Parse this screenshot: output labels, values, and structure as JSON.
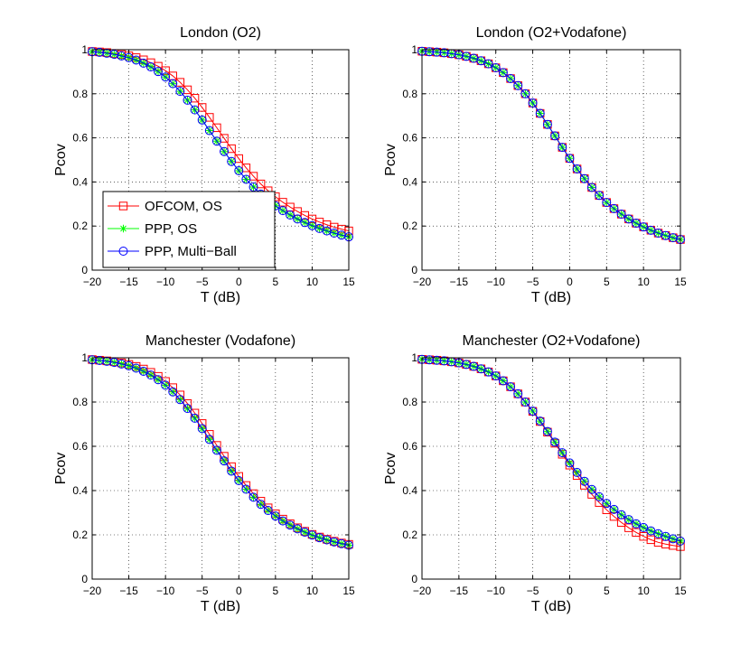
{
  "figure": {
    "background": "#ffffff"
  },
  "series_styles": [
    {
      "name": "OFCOM, OS",
      "color": "#ff0000",
      "marker": "square"
    },
    {
      "name": "PPP, OS",
      "color": "#00ff00",
      "marker": "star"
    },
    {
      "name": "PPP, Multi−Ball",
      "color": "#0000ff",
      "marker": "circle"
    }
  ],
  "chart_data": [
    {
      "type": "line",
      "title": "London (O2)",
      "xlabel": "T (dB)",
      "ylabel": "Pcov",
      "xlim": [
        -20,
        15
      ],
      "ylim": [
        0,
        1
      ],
      "xticks": [
        -20,
        -15,
        -10,
        -5,
        0,
        5,
        10,
        15
      ],
      "yticks": [
        0,
        0.2,
        0.4,
        0.6,
        0.8,
        1
      ],
      "grid": true,
      "legend": {
        "location": "lower-left",
        "entries": [
          "OFCOM, OS",
          "PPP, OS",
          "PPP, Multi−Ball"
        ]
      },
      "x": [
        -20,
        -19,
        -18,
        -17,
        -16,
        -15,
        -14,
        -13,
        -12,
        -11,
        -10,
        -9,
        -8,
        -7,
        -6,
        -5,
        -4,
        -3,
        -2,
        -1,
        0,
        1,
        2,
        3,
        4,
        5,
        6,
        7,
        8,
        9,
        10,
        11,
        12,
        13,
        14,
        15
      ],
      "series": [
        {
          "name": "OFCOM, OS",
          "values": [
            0.992,
            0.99,
            0.987,
            0.983,
            0.978,
            0.972,
            0.964,
            0.954,
            0.941,
            0.925,
            0.905,
            0.881,
            0.852,
            0.818,
            0.78,
            0.738,
            0.693,
            0.646,
            0.598,
            0.551,
            0.506,
            0.464,
            0.426,
            0.391,
            0.36,
            0.333,
            0.308,
            0.286,
            0.266,
            0.248,
            0.232,
            0.218,
            0.206,
            0.195,
            0.186,
            0.178
          ]
        },
        {
          "name": "PPP, OS",
          "values": [
            0.991,
            0.988,
            0.984,
            0.979,
            0.972,
            0.964,
            0.953,
            0.939,
            0.922,
            0.901,
            0.876,
            0.846,
            0.811,
            0.771,
            0.727,
            0.681,
            0.633,
            0.585,
            0.538,
            0.493,
            0.451,
            0.412,
            0.377,
            0.345,
            0.317,
            0.292,
            0.27,
            0.25,
            0.232,
            0.216,
            0.202,
            0.189,
            0.178,
            0.168,
            0.159,
            0.151
          ]
        },
        {
          "name": "PPP, Multi−Ball",
          "values": [
            0.991,
            0.988,
            0.984,
            0.979,
            0.972,
            0.964,
            0.953,
            0.939,
            0.922,
            0.901,
            0.876,
            0.846,
            0.811,
            0.771,
            0.727,
            0.681,
            0.633,
            0.585,
            0.538,
            0.493,
            0.451,
            0.412,
            0.377,
            0.345,
            0.317,
            0.292,
            0.27,
            0.25,
            0.232,
            0.216,
            0.202,
            0.189,
            0.178,
            0.168,
            0.159,
            0.151
          ]
        }
      ]
    },
    {
      "type": "line",
      "title": "London (O2+Vodafone)",
      "xlabel": "T (dB)",
      "ylabel": "Pcov",
      "xlim": [
        -20,
        15
      ],
      "ylim": [
        0,
        1
      ],
      "xticks": [
        -20,
        -15,
        -10,
        -5,
        0,
        5,
        10,
        15
      ],
      "yticks": [
        0,
        0.2,
        0.4,
        0.6,
        0.8,
        1
      ],
      "grid": true,
      "x": [
        -20,
        -19,
        -18,
        -17,
        -16,
        -15,
        -14,
        -13,
        -12,
        -11,
        -10,
        -9,
        -8,
        -7,
        -6,
        -5,
        -4,
        -3,
        -2,
        -1,
        0,
        1,
        2,
        3,
        4,
        5,
        6,
        7,
        8,
        9,
        10,
        11,
        12,
        13,
        14,
        15
      ],
      "series": [
        {
          "name": "OFCOM, OS",
          "values": [
            0.993,
            0.991,
            0.989,
            0.986,
            0.982,
            0.977,
            0.97,
            0.961,
            0.95,
            0.936,
            0.918,
            0.896,
            0.869,
            0.837,
            0.8,
            0.758,
            0.711,
            0.661,
            0.609,
            0.557,
            0.507,
            0.459,
            0.415,
            0.375,
            0.339,
            0.307,
            0.279,
            0.254,
            0.232,
            0.213,
            0.196,
            0.181,
            0.168,
            0.157,
            0.147,
            0.139
          ]
        },
        {
          "name": "PPP, OS",
          "values": [
            0.993,
            0.991,
            0.989,
            0.986,
            0.982,
            0.977,
            0.97,
            0.961,
            0.95,
            0.936,
            0.918,
            0.896,
            0.869,
            0.837,
            0.8,
            0.758,
            0.711,
            0.661,
            0.609,
            0.557,
            0.507,
            0.459,
            0.415,
            0.375,
            0.339,
            0.307,
            0.279,
            0.254,
            0.232,
            0.213,
            0.196,
            0.181,
            0.168,
            0.157,
            0.147,
            0.139
          ]
        },
        {
          "name": "PPP, Multi−Ball",
          "values": [
            0.993,
            0.991,
            0.989,
            0.986,
            0.982,
            0.977,
            0.97,
            0.961,
            0.95,
            0.936,
            0.918,
            0.896,
            0.869,
            0.837,
            0.8,
            0.758,
            0.711,
            0.661,
            0.609,
            0.557,
            0.507,
            0.459,
            0.415,
            0.375,
            0.339,
            0.307,
            0.279,
            0.254,
            0.232,
            0.213,
            0.196,
            0.181,
            0.168,
            0.157,
            0.147,
            0.139
          ]
        }
      ]
    },
    {
      "type": "line",
      "title": "Manchester (Vodafone)",
      "xlabel": "T (dB)",
      "ylabel": "Pcov",
      "xlim": [
        -20,
        15
      ],
      "ylim": [
        0,
        1
      ],
      "xticks": [
        -20,
        -15,
        -10,
        -5,
        0,
        5,
        10,
        15
      ],
      "yticks": [
        0,
        0.2,
        0.4,
        0.6,
        0.8,
        1
      ],
      "grid": true,
      "x": [
        -20,
        -19,
        -18,
        -17,
        -16,
        -15,
        -14,
        -13,
        -12,
        -11,
        -10,
        -9,
        -8,
        -7,
        -6,
        -5,
        -4,
        -3,
        -2,
        -1,
        0,
        1,
        2,
        3,
        4,
        5,
        6,
        7,
        8,
        9,
        10,
        11,
        12,
        13,
        14,
        15
      ],
      "series": [
        {
          "name": "OFCOM, OS",
          "values": [
            0.992,
            0.989,
            0.986,
            0.982,
            0.977,
            0.97,
            0.961,
            0.949,
            0.934,
            0.916,
            0.893,
            0.865,
            0.832,
            0.793,
            0.75,
            0.703,
            0.654,
            0.604,
            0.555,
            0.508,
            0.464,
            0.423,
            0.386,
            0.352,
            0.322,
            0.295,
            0.271,
            0.25,
            0.232,
            0.216,
            0.202,
            0.19,
            0.18,
            0.171,
            0.163,
            0.157
          ]
        },
        {
          "name": "PPP, OS",
          "values": [
            0.991,
            0.988,
            0.984,
            0.979,
            0.972,
            0.964,
            0.953,
            0.939,
            0.922,
            0.901,
            0.876,
            0.846,
            0.811,
            0.771,
            0.727,
            0.68,
            0.631,
            0.582,
            0.534,
            0.488,
            0.445,
            0.406,
            0.37,
            0.338,
            0.31,
            0.285,
            0.263,
            0.244,
            0.227,
            0.212,
            0.199,
            0.187,
            0.177,
            0.168,
            0.16,
            0.153
          ]
        },
        {
          "name": "PPP, Multi−Ball",
          "values": [
            0.991,
            0.988,
            0.984,
            0.979,
            0.972,
            0.964,
            0.953,
            0.939,
            0.922,
            0.901,
            0.876,
            0.846,
            0.811,
            0.771,
            0.727,
            0.68,
            0.631,
            0.582,
            0.534,
            0.488,
            0.445,
            0.406,
            0.37,
            0.338,
            0.31,
            0.285,
            0.263,
            0.244,
            0.227,
            0.212,
            0.199,
            0.187,
            0.177,
            0.168,
            0.16,
            0.153
          ]
        }
      ]
    },
    {
      "type": "line",
      "title": "Manchester (O2+Vodafone)",
      "xlabel": "T (dB)",
      "ylabel": "Pcov",
      "xlim": [
        -20,
        15
      ],
      "ylim": [
        0,
        1
      ],
      "xticks": [
        -20,
        -15,
        -10,
        -5,
        0,
        5,
        10,
        15
      ],
      "yticks": [
        0,
        0.2,
        0.4,
        0.6,
        0.8,
        1
      ],
      "grid": true,
      "x": [
        -20,
        -19,
        -18,
        -17,
        -16,
        -15,
        -14,
        -13,
        -12,
        -11,
        -10,
        -9,
        -8,
        -7,
        -6,
        -5,
        -4,
        -3,
        -2,
        -1,
        0,
        1,
        2,
        3,
        4,
        5,
        6,
        7,
        8,
        9,
        10,
        11,
        12,
        13,
        14,
        15
      ],
      "series": [
        {
          "name": "OFCOM, OS",
          "values": [
            0.993,
            0.991,
            0.989,
            0.986,
            0.982,
            0.977,
            0.97,
            0.961,
            0.95,
            0.936,
            0.918,
            0.896,
            0.869,
            0.837,
            0.8,
            0.758,
            0.712,
            0.664,
            0.614,
            0.564,
            0.515,
            0.468,
            0.424,
            0.383,
            0.346,
            0.313,
            0.283,
            0.256,
            0.232,
            0.211,
            0.193,
            0.178,
            0.166,
            0.158,
            0.152,
            0.147
          ]
        },
        {
          "name": "PPP, OS",
          "values": [
            0.993,
            0.991,
            0.989,
            0.986,
            0.982,
            0.977,
            0.97,
            0.961,
            0.95,
            0.936,
            0.918,
            0.896,
            0.869,
            0.837,
            0.8,
            0.759,
            0.714,
            0.667,
            0.619,
            0.571,
            0.525,
            0.482,
            0.442,
            0.405,
            0.372,
            0.342,
            0.315,
            0.291,
            0.269,
            0.25,
            0.233,
            0.218,
            0.205,
            0.193,
            0.182,
            0.172
          ]
        },
        {
          "name": "PPP, Multi−Ball",
          "values": [
            0.993,
            0.991,
            0.989,
            0.986,
            0.982,
            0.977,
            0.97,
            0.961,
            0.95,
            0.936,
            0.918,
            0.896,
            0.869,
            0.837,
            0.8,
            0.759,
            0.714,
            0.667,
            0.619,
            0.571,
            0.525,
            0.482,
            0.442,
            0.405,
            0.372,
            0.342,
            0.315,
            0.291,
            0.269,
            0.25,
            0.233,
            0.218,
            0.205,
            0.193,
            0.182,
            0.172
          ]
        }
      ]
    }
  ]
}
